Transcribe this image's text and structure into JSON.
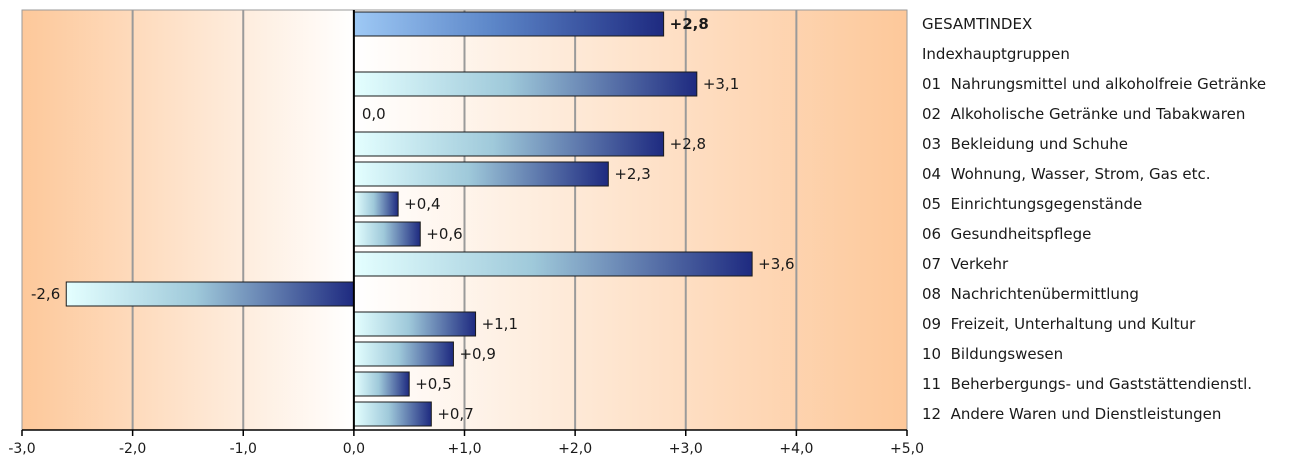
{
  "chart_data": {
    "type": "bar",
    "orientation": "horizontal",
    "categories": [
      "GESAMTINDEX",
      "Indexhauptgruppen",
      "01  Nahrungsmittel und alkoholfreie Getränke",
      "02  Alkoholische Getränke und Tabakwaren",
      "03  Bekleidung und Schuhe",
      "04  Wohnung, Wasser, Strom, Gas etc.",
      "05  Einrichtungsgegenstände",
      "06  Gesundheitspflege",
      "07  Verkehr",
      "08  Nachrichtenübermittlung",
      "09  Freizeit, Unterhaltung und Kultur",
      "10  Bildungswesen",
      "11  Beherbergungs- und Gaststättendienstl.",
      "12  Andere Waren und Dienstleistungen"
    ],
    "values": [
      2.8,
      null,
      3.1,
      0.0,
      2.8,
      2.3,
      0.4,
      0.6,
      3.6,
      -2.6,
      1.1,
      0.9,
      0.5,
      0.7
    ],
    "value_labels": [
      "+2,8",
      "",
      "+3,1",
      "0,0",
      "+2,8",
      "+2,3",
      "+0,4",
      "+0,6",
      "+3,6",
      "-2,6",
      "+1,1",
      "+0,9",
      "+0,5",
      "+0,7"
    ],
    "xlim": [
      -3,
      5
    ],
    "xticks": [
      -3,
      -2,
      -1,
      0,
      1,
      2,
      3,
      4,
      5
    ],
    "xtick_labels": [
      "-3,0",
      "-2,0",
      "-1,0",
      "0,0",
      "+1,0",
      "+2,0",
      "+3,0",
      "+4,0",
      "+5,0"
    ],
    "grid": true,
    "legend": "right",
    "colors": {
      "highlight_bar_start": "#9ec9f5",
      "bar_start": "#e4ffff",
      "bar_end": "#1e2a80",
      "background_edge": "#fdc89a",
      "background_center": "#ffffff",
      "grid": "#9a9a9a"
    }
  }
}
